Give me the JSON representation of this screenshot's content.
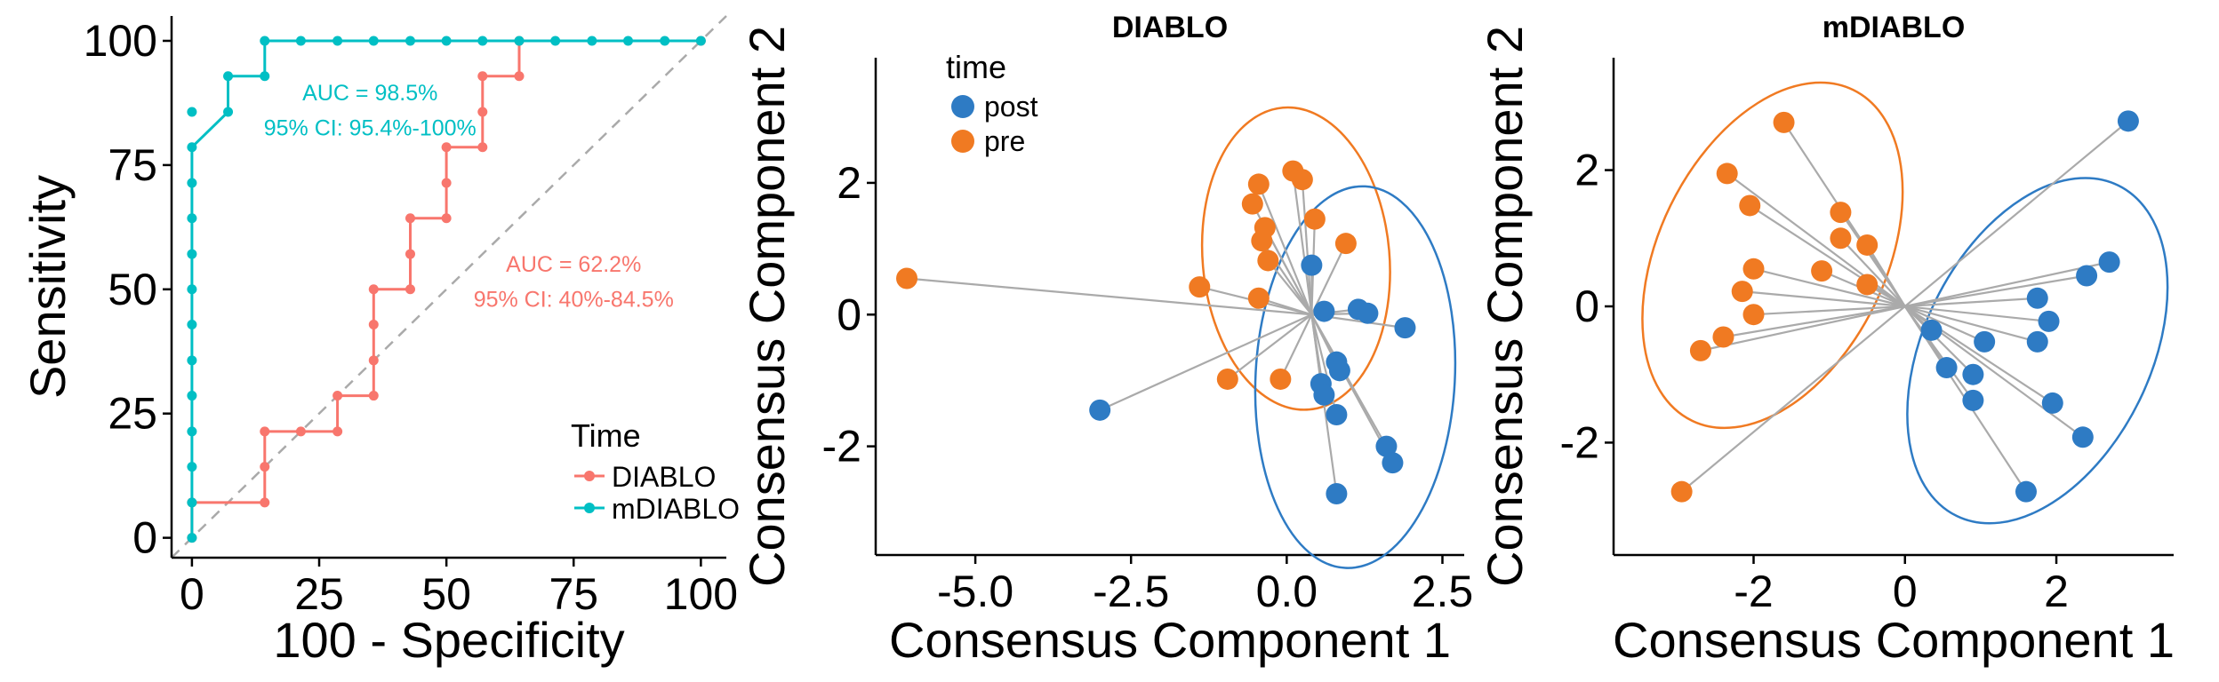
{
  "colors": {
    "diablo_roc": "#F8766D",
    "mdiablo_roc": "#00BFC4",
    "post": "#2E7BC4",
    "pre": "#F07A22",
    "segment": "#AAAAAA",
    "diagonal": "#AAAAAA"
  },
  "chart_data": [
    {
      "type": "line",
      "subtype": "roc-step",
      "xlabel": "100 - Specificity",
      "ylabel": "Sensitivity",
      "xlim": [
        -4,
        105
      ],
      "ylim": [
        -4,
        105
      ],
      "xticks": [
        "0",
        "25",
        "50",
        "75",
        "100"
      ],
      "yticks": [
        "0",
        "25",
        "50",
        "75",
        "100"
      ],
      "diagonal": true,
      "legend": {
        "title": "Time",
        "position": "bottom-right",
        "entries": [
          "DIABLO",
          "mDIABLO"
        ]
      },
      "series": [
        {
          "name": "DIABLO",
          "color_key": "diablo_roc",
          "x": [
            0,
            0,
            14.3,
            14.3,
            14.3,
            21.4,
            28.6,
            28.6,
            35.7,
            35.7,
            35.7,
            35.7,
            42.9,
            42.9,
            42.9,
            50,
            50,
            50,
            57.1,
            57.1,
            57.1,
            64.3,
            64.3,
            100
          ],
          "y": [
            0,
            7.1,
            7.1,
            14.3,
            21.4,
            21.4,
            21.4,
            28.6,
            28.6,
            35.7,
            42.9,
            50,
            50,
            57.1,
            64.3,
            64.3,
            71.4,
            78.6,
            78.6,
            85.7,
            92.9,
            92.9,
            100,
            100
          ],
          "annotation": {
            "line1": "AUC = 62.2%",
            "line2": "95% CI: 40%-84.5%",
            "x": 75,
            "y1": 53.5,
            "y2": 46.5
          }
        },
        {
          "name": "mDIABLO",
          "color_key": "mdiablo_roc",
          "x": [
            0,
            0,
            0,
            0,
            0,
            0,
            0,
            0,
            0,
            0,
            0,
            0,
            7.1,
            7.1,
            14.3,
            14.3,
            21.4,
            28.6,
            35.7,
            42.9,
            50,
            57.1,
            64.3,
            71.4,
            78.6,
            85.7,
            92.9,
            100
          ],
          "y": [
            0,
            7.1,
            14.3,
            21.4,
            28.6,
            35.7,
            42.9,
            50,
            57.1,
            64.3,
            71.4,
            78.6,
            85.7,
            92.9,
            92.9,
            100,
            100,
            100,
            100,
            100,
            100,
            100,
            100,
            100,
            100,
            100,
            100,
            100
          ],
          "extra_points": [
            [
              0,
              85.7
            ]
          ],
          "annotation": {
            "line1": "AUC = 98.5%",
            "line2": "95% CI: 95.4%-100%",
            "x": 35,
            "y1": 88,
            "y2": 81
          }
        }
      ]
    },
    {
      "type": "scatter",
      "title": "DIABLO",
      "xlabel": "Consensus Component 1",
      "ylabel": "Consensus Component 2",
      "xlim": [
        -6.6,
        2.85
      ],
      "ylim": [
        -3.65,
        3.9
      ],
      "xticks": [
        -5.0,
        -2.5,
        0.0,
        2.5
      ],
      "xtick_labels": [
        "-5.0",
        "-2.5",
        "0.0",
        "2.5"
      ],
      "yticks": [
        -2,
        0,
        2
      ],
      "ytick_labels": [
        "-2",
        "0",
        "2"
      ],
      "legend": {
        "title": "time",
        "position": "top-left",
        "entries": [
          {
            "label": "post",
            "color_key": "post"
          },
          {
            "label": "pre",
            "color_key": "pre"
          }
        ]
      },
      "centroid": [
        0.4,
        0.0
      ],
      "ellipses": [
        {
          "group": "pre",
          "cx": 0.15,
          "cy": 0.85,
          "rx": 1.5,
          "ry": 2.3,
          "angle": -5
        },
        {
          "group": "post",
          "cx": 1.1,
          "cy": -0.95,
          "rx": 1.6,
          "ry": 2.9,
          "angle": 3
        }
      ],
      "pre": [
        [
          -6.1,
          0.55
        ],
        [
          -1.4,
          0.42
        ],
        [
          -0.45,
          1.98
        ],
        [
          -0.55,
          1.68
        ],
        [
          -0.35,
          1.32
        ],
        [
          -0.4,
          1.12
        ],
        [
          -0.3,
          0.82
        ],
        [
          -0.45,
          0.25
        ],
        [
          0.1,
          2.18
        ],
        [
          0.25,
          2.05
        ],
        [
          0.45,
          1.45
        ],
        [
          0.95,
          1.08
        ],
        [
          -0.95,
          -0.98
        ],
        [
          -0.1,
          -0.98
        ]
      ],
      "post": [
        [
          -3.0,
          -1.45
        ],
        [
          0.4,
          0.75
        ],
        [
          0.6,
          0.05
        ],
        [
          1.15,
          0.08
        ],
        [
          1.3,
          0.02
        ],
        [
          1.9,
          -0.2
        ],
        [
          0.8,
          -0.72
        ],
        [
          0.85,
          -0.85
        ],
        [
          0.55,
          -1.05
        ],
        [
          0.6,
          -1.22
        ],
        [
          0.8,
          -1.52
        ],
        [
          1.6,
          -2.0
        ],
        [
          1.7,
          -2.25
        ],
        [
          0.8,
          -2.72
        ]
      ]
    },
    {
      "type": "scatter",
      "title": "mDIABLO",
      "xlabel": "Consensus Component 1",
      "ylabel": "Consensus Component 2",
      "xlim": [
        -3.85,
        3.55
      ],
      "ylim": [
        -3.65,
        3.65
      ],
      "xticks": [
        -2,
        0,
        2
      ],
      "xtick_labels": [
        "-2",
        "0",
        "2"
      ],
      "yticks": [
        -2,
        0,
        2
      ],
      "ytick_labels": [
        "-2",
        "0",
        "2"
      ],
      "centroid": [
        0.0,
        0.0
      ],
      "ellipses": [
        {
          "group": "pre",
          "cx": -1.75,
          "cy": 0.75,
          "rx": 1.5,
          "ry": 2.7,
          "angle": 26
        },
        {
          "group": "post",
          "cx": 1.75,
          "cy": -0.65,
          "rx": 1.5,
          "ry": 2.7,
          "angle": 26
        }
      ],
      "pre": [
        [
          -1.6,
          2.7
        ],
        [
          -2.35,
          1.95
        ],
        [
          -2.05,
          1.48
        ],
        [
          -0.85,
          1.38
        ],
        [
          -0.85,
          1.0
        ],
        [
          -0.5,
          0.9
        ],
        [
          -1.1,
          0.52
        ],
        [
          -2.0,
          0.55
        ],
        [
          -0.5,
          0.32
        ],
        [
          -2.15,
          0.22
        ],
        [
          -2.0,
          -0.12
        ],
        [
          -2.4,
          -0.45
        ],
        [
          -2.7,
          -0.65
        ],
        [
          -2.95,
          -2.72
        ]
      ],
      "post": [
        [
          2.95,
          2.72
        ],
        [
          2.7,
          0.65
        ],
        [
          2.4,
          0.45
        ],
        [
          1.75,
          0.12
        ],
        [
          1.9,
          -0.22
        ],
        [
          0.35,
          -0.35
        ],
        [
          1.05,
          -0.52
        ],
        [
          1.75,
          -0.52
        ],
        [
          0.55,
          -0.9
        ],
        [
          0.9,
          -1.0
        ],
        [
          0.9,
          -1.38
        ],
        [
          1.95,
          -1.42
        ],
        [
          2.35,
          -1.92
        ],
        [
          1.6,
          -2.72
        ]
      ]
    }
  ]
}
